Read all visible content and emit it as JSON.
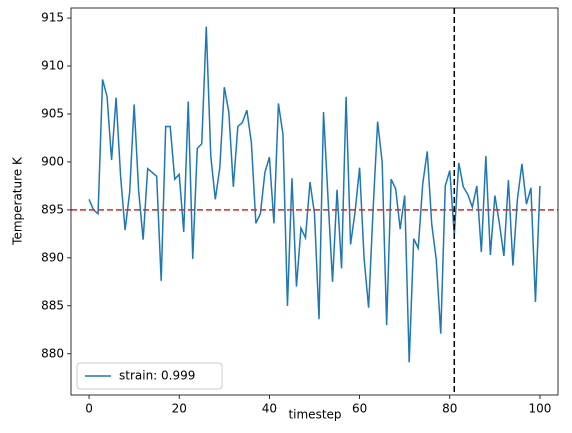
{
  "chart_data": {
    "type": "line",
    "x_label": "timestep",
    "y_label": "Temperature K",
    "x": [
      0,
      1,
      2,
      3,
      4,
      5,
      6,
      7,
      8,
      9,
      10,
      11,
      12,
      13,
      14,
      15,
      16,
      17,
      18,
      19,
      20,
      21,
      22,
      23,
      24,
      25,
      26,
      27,
      28,
      29,
      30,
      31,
      32,
      33,
      34,
      35,
      36,
      37,
      38,
      39,
      40,
      41,
      42,
      43,
      44,
      45,
      46,
      47,
      48,
      49,
      50,
      51,
      52,
      53,
      54,
      55,
      56,
      57,
      58,
      59,
      60,
      61,
      62,
      63,
      64,
      65,
      66,
      67,
      68,
      69,
      70,
      71,
      72,
      73,
      74,
      75,
      76,
      77,
      78,
      79,
      80,
      81,
      82,
      83,
      84,
      85,
      86,
      87,
      88,
      89,
      90,
      91,
      92,
      93,
      94,
      95,
      96,
      97,
      98,
      99,
      100
    ],
    "series": [
      {
        "name": "strain: 0.999",
        "color": "#1f77b4",
        "values": [
          896.1,
          895.0,
          894.6,
          908.6,
          906.8,
          900.2,
          906.7,
          898.5,
          892.9,
          896.8,
          906.0,
          897.0,
          891.9,
          899.3,
          898.9,
          898.5,
          887.6,
          903.7,
          903.7,
          898.2,
          898.7,
          892.7,
          906.3,
          889.9,
          901.4,
          901.9,
          914.1,
          900.6,
          896.1,
          899.4,
          907.8,
          905.2,
          897.4,
          903.7,
          904.1,
          905.4,
          902.0,
          893.6,
          894.6,
          898.9,
          900.5,
          893.6,
          906.1,
          902.9,
          885.0,
          898.3,
          887.0,
          893.1,
          892.1,
          897.9,
          894.6,
          883.6,
          905.2,
          896.2,
          887.5,
          897.1,
          888.9,
          906.8,
          891.4,
          894.8,
          899.4,
          889.9,
          884.8,
          895.1,
          904.2,
          900.0,
          883.0,
          898.2,
          897.2,
          893.0,
          896.5,
          879.1,
          892.0,
          891.0,
          897.7,
          901.1,
          893.5,
          889.8,
          882.1,
          897.5,
          899.1,
          892.4,
          899.9,
          897.4,
          896.6,
          895.3,
          897.5,
          890.6,
          900.6,
          890.3,
          896.5,
          893.6,
          890.2,
          898.1,
          889.2,
          896.1,
          899.8,
          895.6,
          897.3,
          885.4,
          897.5
        ]
      }
    ],
    "xlim": [
      -4,
      104
    ],
    "ylim": [
      875.7,
      916.05
    ],
    "xticks": [
      0,
      20,
      40,
      60,
      80,
      100
    ],
    "yticks": [
      880,
      885,
      890,
      895,
      900,
      905,
      910,
      915
    ],
    "hline": {
      "value": 895,
      "color": "#d62728"
    },
    "vline": {
      "value": 81,
      "color": "#000000"
    },
    "legend": "lower left"
  }
}
